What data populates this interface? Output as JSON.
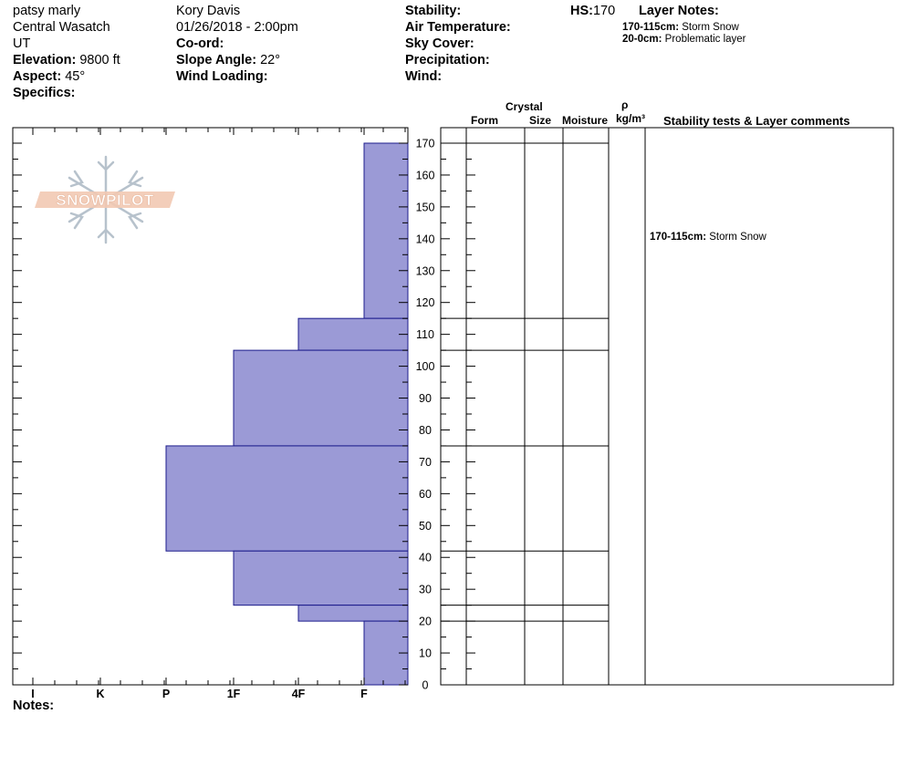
{
  "header": {
    "observer": "patsy marly",
    "region": "Central Wasatch",
    "state": "UT",
    "elevation_label": "Elevation:",
    "elevation_value": "9800 ft",
    "aspect_label": "Aspect:",
    "aspect_value": "45°",
    "specifics_label": "Specifics:",
    "observer2": "Kory Davis",
    "datetime": "01/26/2018 - 2:00pm",
    "coord_label": "Co-ord:",
    "slope_label": "Slope Angle:",
    "slope_value": "22°",
    "wind_loading_label": "Wind Loading:",
    "stability_label": "Stability:",
    "air_temp_label": "Air Temperature:",
    "sky_cover_label": "Sky Cover:",
    "precip_label": "Precipitation:",
    "wind_label": "Wind:",
    "hs_label": "HS:",
    "hs_value": "170",
    "layer_notes_label": "Layer Notes:",
    "layer_notes": [
      {
        "range": "170-115cm:",
        "text": "Storm Snow"
      },
      {
        "range": "20-0cm:",
        "text": "Problematic layer"
      }
    ]
  },
  "logo_text": "SNOWPILOT",
  "columns": {
    "crystal": "Crystal",
    "form": "Form",
    "size": "Size",
    "moisture": "Moisture",
    "rho": "ρ",
    "density_unit": "kg/m³",
    "comments": "Stability tests & Layer comments"
  },
  "notes_label": "Notes:",
  "layer_comments": [
    {
      "range": "170-115cm:",
      "text": "Storm Snow"
    }
  ],
  "colors": {
    "hardness_fill": "#9b9ad6",
    "hardness_stroke": "#1c1c8c"
  },
  "chart_data": {
    "type": "bar",
    "orientation": "horizontal",
    "ylabel": "",
    "ylim": [
      0,
      170
    ],
    "yticks": [
      0,
      10,
      20,
      30,
      40,
      50,
      60,
      70,
      80,
      90,
      100,
      110,
      120,
      130,
      140,
      150,
      160,
      170
    ],
    "x_categories": [
      "I",
      "K",
      "P",
      "1F",
      "4F",
      "F"
    ],
    "layers": [
      {
        "top": 170,
        "bottom": 115,
        "hardness": "F"
      },
      {
        "top": 115,
        "bottom": 105,
        "hardness": "4F"
      },
      {
        "top": 105,
        "bottom": 75,
        "hardness": "1F"
      },
      {
        "top": 75,
        "bottom": 42,
        "hardness": "P"
      },
      {
        "top": 42,
        "bottom": 25,
        "hardness": "1F"
      },
      {
        "top": 25,
        "bottom": 20,
        "hardness": "4F"
      },
      {
        "top": 20,
        "bottom": 0,
        "hardness": "F"
      }
    ],
    "boundaries": [
      170,
      115,
      105,
      75,
      42,
      25,
      20
    ]
  }
}
